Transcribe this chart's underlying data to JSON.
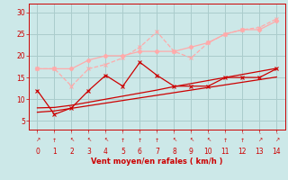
{
  "x": [
    0,
    1,
    2,
    3,
    4,
    5,
    6,
    7,
    8,
    9,
    10,
    11,
    12,
    13,
    14
  ],
  "line_dark_zigzag": [
    12,
    6.5,
    8,
    12,
    15.5,
    13,
    18.5,
    15.5,
    13,
    13,
    13,
    15,
    15,
    15,
    17
  ],
  "line_pink_zigzag": [
    17,
    17,
    13,
    17,
    18,
    19.5,
    22,
    25.5,
    21,
    19.5,
    23,
    25,
    26,
    26.5,
    28.5
  ],
  "line_pink_smooth": [
    17,
    17,
    17,
    19,
    20,
    20,
    21,
    21,
    21,
    22,
    23,
    25,
    26,
    26,
    28
  ],
  "line_lower1": [
    8.0,
    8.1,
    8.6,
    9.3,
    10.0,
    10.7,
    11.4,
    12.1,
    12.9,
    13.6,
    14.3,
    15.0,
    15.7,
    16.4,
    17.1
  ],
  "line_lower2": [
    7.0,
    7.3,
    7.9,
    8.5,
    9.1,
    9.7,
    10.3,
    10.9,
    11.5,
    12.1,
    12.7,
    13.3,
    13.9,
    14.5,
    15.1
  ],
  "color_dark_red": "#cc0000",
  "color_light_pink": "#ffaaaa",
  "color_mid_pink": "#ff7777",
  "background_color": "#cce8e8",
  "grid_color": "#aacccc",
  "xlabel": "Vent moyen/en rafales ( km/h )",
  "ylim": [
    3,
    32
  ],
  "xlim": [
    -0.5,
    14.5
  ],
  "yticks": [
    5,
    10,
    15,
    20,
    25,
    30
  ],
  "xticks": [
    0,
    1,
    2,
    3,
    4,
    5,
    6,
    7,
    8,
    9,
    10,
    11,
    12,
    13,
    14
  ],
  "wind_symbols": [
    "↗",
    "↑",
    "↖",
    "↖",
    "↖",
    "↑",
    "↑",
    "↑",
    "↖",
    "↖",
    "↖",
    "↑",
    "↑",
    "↗",
    "↗"
  ]
}
